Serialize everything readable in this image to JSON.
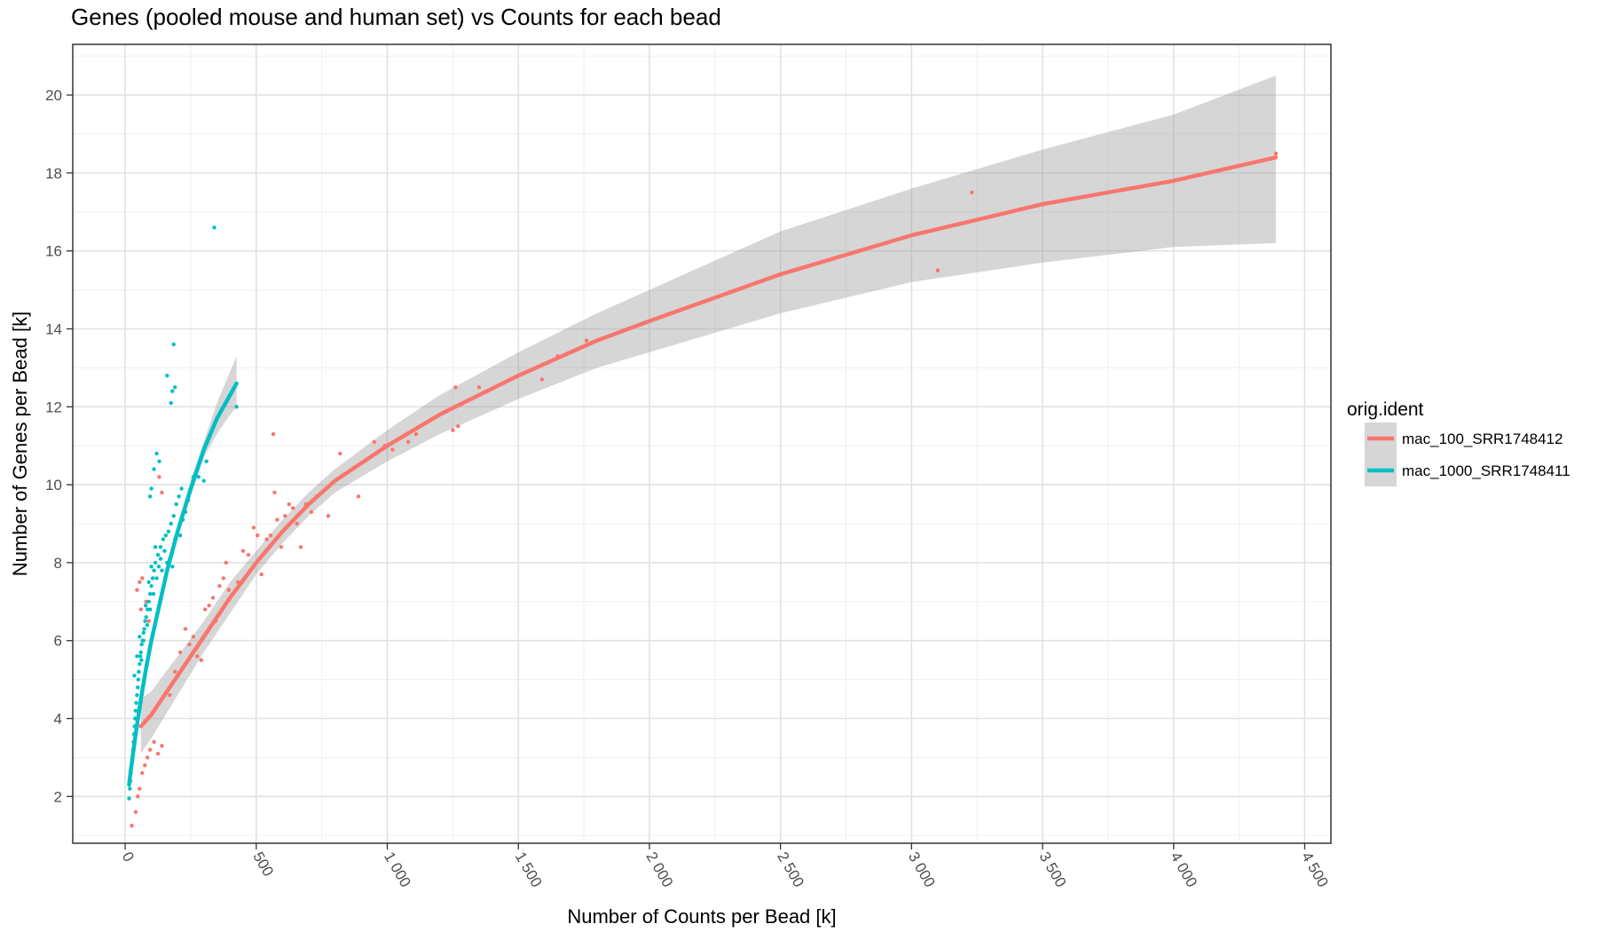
{
  "chart_data": {
    "type": "scatter",
    "title": "Genes (pooled mouse and human set) vs Counts for each bead",
    "xlabel": "Number of Counts per Bead [k]",
    "ylabel": "Number of Genes per Bead [k]",
    "xlim": [
      -200,
      4600
    ],
    "ylim": [
      0.8,
      21.3
    ],
    "x_ticks": [
      0,
      500,
      1000,
      1500,
      2000,
      2500,
      3000,
      3500,
      4000,
      4500
    ],
    "x_tick_labels": [
      "0",
      "500",
      "1 000",
      "1 500",
      "2 000",
      "2 500",
      "3 000",
      "3 500",
      "4 000",
      "4 500"
    ],
    "y_ticks": [
      2,
      4,
      6,
      8,
      10,
      12,
      14,
      16,
      18,
      20
    ],
    "y_tick_labels": [
      "2",
      "4",
      "6",
      "8",
      "10",
      "12",
      "14",
      "16",
      "18",
      "20"
    ],
    "grid": true,
    "legend": {
      "title": "orig.ident",
      "position": "right"
    },
    "series": [
      {
        "name": "mac_100_SRR1748412",
        "color": "#F8766D",
        "points": [
          [
            25,
            1.25
          ],
          [
            40,
            1.6
          ],
          [
            48,
            2.0
          ],
          [
            55,
            2.2
          ],
          [
            65,
            2.6
          ],
          [
            75,
            2.8
          ],
          [
            85,
            3.0
          ],
          [
            95,
            3.2
          ],
          [
            110,
            3.4
          ],
          [
            125,
            3.1
          ],
          [
            140,
            3.3
          ],
          [
            45,
            7.3
          ],
          [
            55,
            7.5
          ],
          [
            65,
            7.6
          ],
          [
            80,
            7.0
          ],
          [
            60,
            6.8
          ],
          [
            90,
            6.5
          ],
          [
            130,
            10.2
          ],
          [
            140,
            9.8
          ],
          [
            170,
            4.6
          ],
          [
            190,
            5.2
          ],
          [
            210,
            5.7
          ],
          [
            230,
            6.3
          ],
          [
            245,
            5.9
          ],
          [
            260,
            6.1
          ],
          [
            275,
            5.6
          ],
          [
            290,
            5.5
          ],
          [
            305,
            6.8
          ],
          [
            320,
            6.9
          ],
          [
            335,
            7.1
          ],
          [
            345,
            6.5
          ],
          [
            360,
            7.4
          ],
          [
            375,
            7.6
          ],
          [
            385,
            8.0
          ],
          [
            395,
            7.3
          ],
          [
            410,
            7.2
          ],
          [
            430,
            7.5
          ],
          [
            450,
            8.3
          ],
          [
            470,
            8.2
          ],
          [
            490,
            8.9
          ],
          [
            505,
            8.7
          ],
          [
            520,
            7.7
          ],
          [
            540,
            8.6
          ],
          [
            555,
            8.7
          ],
          [
            565,
            11.3
          ],
          [
            570,
            9.8
          ],
          [
            580,
            9.1
          ],
          [
            595,
            8.4
          ],
          [
            610,
            9.2
          ],
          [
            625,
            9.5
          ],
          [
            640,
            9.4
          ],
          [
            655,
            9.0
          ],
          [
            670,
            8.4
          ],
          [
            690,
            9.5
          ],
          [
            710,
            9.3
          ],
          [
            730,
            9.7
          ],
          [
            750,
            9.8
          ],
          [
            775,
            9.2
          ],
          [
            820,
            10.8
          ],
          [
            890,
            9.7
          ],
          [
            950,
            11.1
          ],
          [
            990,
            11.0
          ],
          [
            1020,
            10.9
          ],
          [
            1080,
            11.1
          ],
          [
            1110,
            11.3
          ],
          [
            1250,
            11.4
          ],
          [
            1260,
            12.5
          ],
          [
            1270,
            11.5
          ],
          [
            1350,
            12.5
          ],
          [
            1590,
            12.7
          ],
          [
            1650,
            13.3
          ],
          [
            1760,
            13.7
          ],
          [
            3100,
            15.5
          ],
          [
            3230,
            17.5
          ],
          [
            4390,
            18.5
          ]
        ],
        "fit": [
          [
            60,
            3.8
          ],
          [
            100,
            4.1
          ],
          [
            200,
            5.1
          ],
          [
            300,
            6.1
          ],
          [
            400,
            7.1
          ],
          [
            500,
            8.0
          ],
          [
            600,
            8.8
          ],
          [
            700,
            9.5
          ],
          [
            800,
            10.1
          ],
          [
            1000,
            11.0
          ],
          [
            1200,
            11.8
          ],
          [
            1500,
            12.8
          ],
          [
            1800,
            13.7
          ],
          [
            2000,
            14.2
          ],
          [
            2500,
            15.4
          ],
          [
            3000,
            16.4
          ],
          [
            3500,
            17.2
          ],
          [
            4000,
            17.8
          ],
          [
            4390,
            18.4
          ]
        ],
        "ci_upper": [
          [
            60,
            4.5
          ],
          [
            100,
            4.7
          ],
          [
            200,
            5.6
          ],
          [
            300,
            6.5
          ],
          [
            400,
            7.5
          ],
          [
            500,
            8.3
          ],
          [
            600,
            9.1
          ],
          [
            700,
            9.8
          ],
          [
            800,
            10.4
          ],
          [
            1000,
            11.4
          ],
          [
            1200,
            12.3
          ],
          [
            1500,
            13.4
          ],
          [
            1800,
            14.4
          ],
          [
            2000,
            15.0
          ],
          [
            2500,
            16.5
          ],
          [
            3000,
            17.6
          ],
          [
            3500,
            18.6
          ],
          [
            4000,
            19.5
          ],
          [
            4390,
            20.5
          ]
        ],
        "ci_lower": [
          [
            60,
            3.1
          ],
          [
            100,
            3.5
          ],
          [
            200,
            4.6
          ],
          [
            300,
            5.7
          ],
          [
            400,
            6.7
          ],
          [
            500,
            7.7
          ],
          [
            600,
            8.5
          ],
          [
            700,
            9.2
          ],
          [
            800,
            9.8
          ],
          [
            1000,
            10.6
          ],
          [
            1200,
            11.3
          ],
          [
            1500,
            12.2
          ],
          [
            1800,
            13.0
          ],
          [
            2000,
            13.4
          ],
          [
            2500,
            14.4
          ],
          [
            3000,
            15.2
          ],
          [
            3500,
            15.7
          ],
          [
            4000,
            16.1
          ],
          [
            4390,
            16.2
          ]
        ]
      },
      {
        "name": "mac_1000_SRR1748411",
        "color": "#00BFC4",
        "points": [
          [
            15,
            1.95
          ],
          [
            18,
            2.2
          ],
          [
            20,
            2.4
          ],
          [
            22,
            2.6
          ],
          [
            25,
            2.8
          ],
          [
            28,
            3.0
          ],
          [
            30,
            3.2
          ],
          [
            32,
            3.4
          ],
          [
            34,
            3.6
          ],
          [
            36,
            3.8
          ],
          [
            38,
            4.0
          ],
          [
            40,
            4.2
          ],
          [
            42,
            4.4
          ],
          [
            45,
            4.6
          ],
          [
            48,
            4.8
          ],
          [
            50,
            5.0
          ],
          [
            52,
            5.2
          ],
          [
            55,
            5.4
          ],
          [
            58,
            5.6
          ],
          [
            60,
            5.7
          ],
          [
            63,
            5.9
          ],
          [
            66,
            6.0
          ],
          [
            70,
            6.2
          ],
          [
            73,
            6.3
          ],
          [
            76,
            6.5
          ],
          [
            80,
            6.6
          ],
          [
            85,
            6.8
          ],
          [
            90,
            7.0
          ],
          [
            95,
            7.2
          ],
          [
            100,
            7.4
          ],
          [
            105,
            7.6
          ],
          [
            110,
            7.8
          ],
          [
            115,
            8.0
          ],
          [
            125,
            8.2
          ],
          [
            135,
            8.4
          ],
          [
            145,
            8.6
          ],
          [
            155,
            8.7
          ],
          [
            165,
            8.8
          ],
          [
            175,
            9.0
          ],
          [
            185,
            9.2
          ],
          [
            195,
            9.5
          ],
          [
            205,
            9.7
          ],
          [
            215,
            9.9
          ],
          [
            35,
            5.1
          ],
          [
            45,
            5.6
          ],
          [
            55,
            6.1
          ],
          [
            62,
            5.5
          ],
          [
            70,
            6.0
          ],
          [
            78,
            6.9
          ],
          [
            84,
            6.4
          ],
          [
            90,
            7.5
          ],
          [
            95,
            6.8
          ],
          [
            100,
            7.9
          ],
          [
            108,
            7.2
          ],
          [
            115,
            8.4
          ],
          [
            120,
            7.6
          ],
          [
            128,
            7.9
          ],
          [
            135,
            8.1
          ],
          [
            140,
            7.8
          ],
          [
            150,
            8.3
          ],
          [
            160,
            8.0
          ],
          [
            170,
            8.1
          ],
          [
            180,
            7.9
          ],
          [
            190,
            8.6
          ],
          [
            200,
            8.8
          ],
          [
            210,
            8.7
          ],
          [
            220,
            9.1
          ],
          [
            230,
            9.3
          ],
          [
            240,
            9.6
          ],
          [
            250,
            9.9
          ],
          [
            260,
            10.2
          ],
          [
            280,
            10.2
          ],
          [
            300,
            10.1
          ],
          [
            310,
            10.6
          ],
          [
            95,
            9.7
          ],
          [
            100,
            9.9
          ],
          [
            110,
            10.4
          ],
          [
            120,
            10.8
          ],
          [
            130,
            10.6
          ],
          [
            160,
            12.8
          ],
          [
            175,
            12.1
          ],
          [
            180,
            12.4
          ],
          [
            190,
            12.5
          ],
          [
            185,
            13.6
          ],
          [
            340,
            16.6
          ],
          [
            425,
            12.0
          ]
        ],
        "fit": [
          [
            15,
            2.3
          ],
          [
            20,
            2.6
          ],
          [
            30,
            3.1
          ],
          [
            40,
            3.6
          ],
          [
            60,
            4.5
          ],
          [
            80,
            5.3
          ],
          [
            100,
            6.0
          ],
          [
            130,
            6.9
          ],
          [
            160,
            7.8
          ],
          [
            200,
            8.8
          ],
          [
            250,
            9.9
          ],
          [
            300,
            10.9
          ],
          [
            350,
            11.7
          ],
          [
            400,
            12.3
          ],
          [
            425,
            12.6
          ]
        ],
        "ci_upper": [
          [
            15,
            2.4
          ],
          [
            20,
            2.7
          ],
          [
            30,
            3.2
          ],
          [
            40,
            3.7
          ],
          [
            60,
            4.6
          ],
          [
            80,
            5.4
          ],
          [
            100,
            6.1
          ],
          [
            130,
            7.0
          ],
          [
            160,
            7.9
          ],
          [
            200,
            8.9
          ],
          [
            250,
            10.1
          ],
          [
            300,
            11.1
          ],
          [
            350,
            12.1
          ],
          [
            400,
            12.9
          ],
          [
            425,
            13.3
          ]
        ],
        "ci_lower": [
          [
            15,
            2.2
          ],
          [
            20,
            2.5
          ],
          [
            30,
            3.0
          ],
          [
            40,
            3.5
          ],
          [
            60,
            4.4
          ],
          [
            80,
            5.2
          ],
          [
            100,
            5.9
          ],
          [
            130,
            6.8
          ],
          [
            160,
            7.7
          ],
          [
            200,
            8.7
          ],
          [
            250,
            9.7
          ],
          [
            300,
            10.7
          ],
          [
            350,
            11.3
          ],
          [
            400,
            11.8
          ],
          [
            425,
            12.0
          ]
        ]
      }
    ]
  }
}
